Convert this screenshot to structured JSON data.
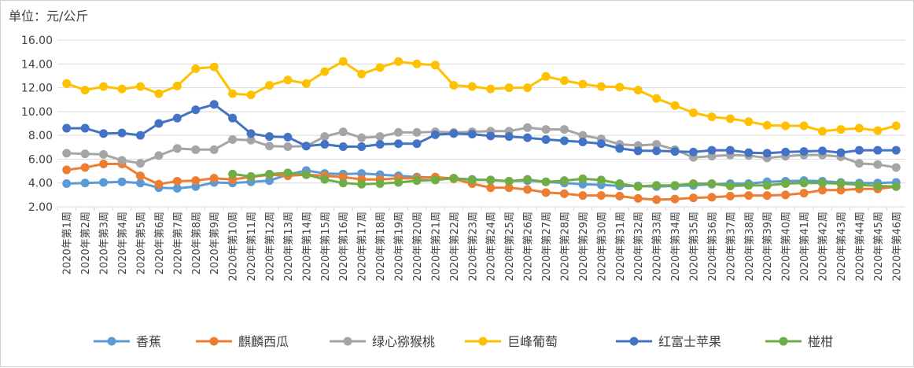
{
  "unit_label": "单位：元/公斤",
  "chart_data": {
    "type": "line",
    "ylim": [
      2,
      16
    ],
    "yticks": [
      "2.00",
      "4.00",
      "6.00",
      "8.00",
      "10.00",
      "12.00",
      "14.00",
      "16.00"
    ],
    "grid": true,
    "legend_position": "bottom",
    "categories": [
      "2020年第1周",
      "2020年第2周",
      "2020年第3周",
      "2020年第4周",
      "2020年第5周",
      "2020年第6周",
      "2020年第7周",
      "2020年第8周",
      "2020年第9周",
      "2020年第10周",
      "2020年第11周",
      "2020年第12周",
      "2020年第13周",
      "2020年第14周",
      "2020年第15周",
      "2020年第16周",
      "2020年第17周",
      "2020年第18周",
      "2020年第19周",
      "2020年第20周",
      "2020年第21周",
      "2020年第22周",
      "2020年第23周",
      "2020年第24周",
      "2020年第25周",
      "2020年第26周",
      "2020年第27周",
      "2020年第28周",
      "2020年第29周",
      "2020年第30周",
      "2020年第31周",
      "2020年第32周",
      "2020年第33周",
      "2020年第34周",
      "2020年第35周",
      "2020年第36周",
      "2020年第37周",
      "2020年第38周",
      "2020年第39周",
      "2020年第40周",
      "2020年第41周",
      "2020年第42周",
      "2020年第43周",
      "2020年第44周",
      "2020年第45周",
      "2020年第46周"
    ],
    "series": [
      {
        "name": "香蕉",
        "color": "#5B9BD5",
        "values": [
          3.95,
          4.0,
          4.05,
          4.1,
          4.0,
          3.6,
          3.55,
          3.7,
          4.05,
          4.0,
          4.1,
          4.2,
          4.7,
          5.05,
          4.8,
          4.75,
          4.8,
          4.7,
          4.6,
          4.5,
          4.45,
          4.4,
          4.3,
          4.25,
          4.15,
          4.2,
          4.1,
          4.0,
          3.9,
          3.85,
          3.75,
          3.75,
          3.7,
          3.75,
          3.8,
          3.9,
          3.95,
          3.95,
          4.1,
          4.15,
          4.2,
          4.15,
          4.05,
          4.0,
          4.0,
          4.05
        ]
      },
      {
        "name": "麒麟西瓜",
        "color": "#ED7D31",
        "values": [
          5.1,
          5.3,
          5.6,
          5.6,
          4.6,
          3.9,
          4.15,
          4.2,
          4.4,
          4.3,
          4.5,
          4.7,
          4.6,
          4.7,
          4.6,
          4.5,
          4.3,
          4.3,
          4.4,
          4.4,
          4.5,
          4.35,
          3.95,
          3.6,
          3.6,
          3.45,
          3.2,
          3.1,
          2.95,
          2.95,
          2.9,
          2.7,
          2.6,
          2.65,
          2.75,
          2.8,
          2.9,
          2.95,
          2.95,
          3.0,
          3.15,
          3.4,
          3.4,
          3.5,
          3.5,
          3.7
        ]
      },
      {
        "name": "绿心猕猴桃",
        "color": "#A5A5A5",
        "values": [
          6.5,
          6.45,
          6.4,
          5.9,
          5.65,
          6.3,
          6.9,
          6.8,
          6.8,
          7.65,
          7.6,
          7.1,
          7.05,
          7.1,
          7.9,
          8.3,
          7.8,
          7.9,
          8.25,
          8.25,
          8.3,
          8.25,
          8.3,
          8.35,
          8.35,
          8.65,
          8.5,
          8.5,
          8.0,
          7.7,
          7.25,
          7.15,
          7.25,
          6.8,
          6.15,
          6.25,
          6.35,
          6.3,
          6.1,
          6.25,
          6.35,
          6.35,
          6.2,
          5.65,
          5.55,
          5.3
        ]
      },
      {
        "name": "巨峰葡萄",
        "color": "#FFC000",
        "values": [
          12.35,
          11.8,
          12.1,
          11.9,
          12.1,
          11.5,
          12.15,
          13.6,
          13.75,
          11.5,
          11.4,
          12.2,
          12.65,
          12.35,
          13.35,
          14.2,
          13.15,
          13.7,
          14.2,
          14.0,
          13.9,
          12.2,
          12.1,
          11.9,
          12.0,
          12.0,
          12.95,
          12.6,
          12.3,
          12.1,
          12.05,
          11.8,
          11.1,
          10.5,
          9.9,
          9.55,
          9.4,
          9.15,
          8.85,
          8.8,
          8.8,
          8.35,
          8.5,
          8.6,
          8.4,
          8.8
        ]
      },
      {
        "name": "红富士苹果",
        "color": "#4472C4",
        "values": [
          8.6,
          8.6,
          8.15,
          8.2,
          8.0,
          9.0,
          9.45,
          10.15,
          10.6,
          9.45,
          8.15,
          7.9,
          7.85,
          7.1,
          7.25,
          7.05,
          7.05,
          7.25,
          7.3,
          7.3,
          8.05,
          8.15,
          8.1,
          7.95,
          7.9,
          7.8,
          7.65,
          7.55,
          7.45,
          7.3,
          6.9,
          6.7,
          6.7,
          6.65,
          6.6,
          6.75,
          6.75,
          6.55,
          6.5,
          6.6,
          6.65,
          6.7,
          6.55,
          6.75,
          6.75,
          6.75
        ]
      },
      {
        "name": "椪柑",
        "color": "#70AD47",
        "start": 9,
        "values": [
          null,
          null,
          null,
          null,
          null,
          null,
          null,
          null,
          null,
          4.75,
          4.55,
          4.75,
          4.85,
          4.7,
          4.3,
          4.0,
          3.9,
          3.95,
          4.05,
          4.2,
          4.25,
          4.4,
          4.25,
          4.25,
          4.15,
          4.3,
          4.1,
          4.2,
          4.35,
          4.25,
          3.95,
          3.7,
          3.8,
          3.8,
          3.95,
          3.95,
          3.75,
          3.8,
          3.8,
          3.95,
          4.0,
          4.0,
          3.95,
          3.85,
          3.75,
          3.7
        ]
      }
    ]
  }
}
